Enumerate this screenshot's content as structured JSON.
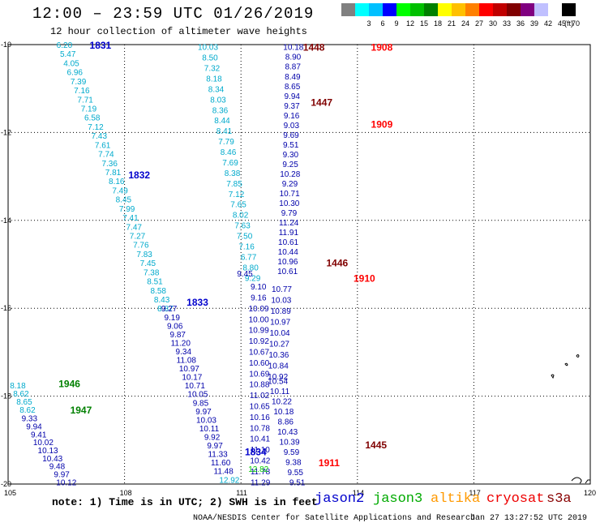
{
  "header": {
    "title": "12:00 – 23:59 UTC 01/26/2019",
    "subtitle": "12 hour collection of altimeter wave heights"
  },
  "color_scale": {
    "unit": "(ft)",
    "colors": [
      "#808080",
      "#00ffff",
      "#00c0ff",
      "#0000ff",
      "#00ff00",
      "#00c000",
      "#008000",
      "#ffff00",
      "#ffc000",
      "#ff8000",
      "#ff0000",
      "#c00000",
      "#800000",
      "#800080",
      "#c0c0ff",
      "#ffffff",
      "#000000"
    ],
    "labels": [
      "",
      "3",
      "6",
      "9",
      "12",
      "15",
      "18",
      "21",
      "24",
      "27",
      "30",
      "33",
      "36",
      "39",
      "42",
      "45",
      "70"
    ]
  },
  "map": {
    "lon_ticks": [
      "105",
      "108",
      "111",
      "114",
      "117",
      "120"
    ],
    "lat_ticks": [
      "-10",
      "-12",
      "-14",
      "-16",
      "-18",
      "-20"
    ]
  },
  "passes": [
    {
      "label": "1831",
      "color": "#0000cc",
      "lon": 107.1,
      "lat": -10.0
    },
    {
      "label": "1832",
      "color": "#0000cc",
      "lon": 108.1,
      "lat": -12.95
    },
    {
      "label": "1833",
      "color": "#0000cc",
      "lon": 109.6,
      "lat": -15.85
    },
    {
      "label": "1834",
      "color": "#0000cc",
      "lon": 111.1,
      "lat": -19.25
    },
    {
      "label": "1946",
      "color": "#008000",
      "lon": 106.3,
      "lat": -17.7
    },
    {
      "label": "1947",
      "color": "#008000",
      "lon": 106.6,
      "lat": -18.3
    },
    {
      "label": "1448",
      "color": "#800000",
      "lon": 112.6,
      "lat": -10.05
    },
    {
      "label": "1447",
      "color": "#800000",
      "lon": 112.8,
      "lat": -11.3
    },
    {
      "label": "1446",
      "color": "#800000",
      "lon": 113.2,
      "lat": -14.95
    },
    {
      "label": "1445",
      "color": "#800000",
      "lon": 114.2,
      "lat": -19.1
    },
    {
      "label": "1908",
      "color": "#ff0000",
      "lon": 114.35,
      "lat": -10.05
    },
    {
      "label": "1909",
      "color": "#ff0000",
      "lon": 114.35,
      "lat": -11.8
    },
    {
      "label": "1910",
      "color": "#ff0000",
      "lon": 113.9,
      "lat": -15.3
    },
    {
      "label": "1911",
      "color": "#ff0000",
      "lon": 113.0,
      "lat": -19.5
    }
  ],
  "tracks": [
    {
      "id": "t1",
      "color": "#00aacc",
      "lon_start": 106.45,
      "lat_start": -10.0,
      "lon_end": 109.05,
      "lat_end": -16.0,
      "values": [
        "6.20",
        "5.47",
        "4.05",
        "6.96",
        "7.39",
        "7.16",
        "7.71",
        "7.19",
        "6.58",
        "7.12",
        "7.43",
        "7.61",
        "7.74",
        "7.36",
        "7.81",
        "8.16",
        "7.49",
        "8.45",
        "7.99",
        "7.41",
        "7.47",
        "7.27",
        "7.76",
        "7.83",
        "7.45",
        "7.38",
        "8.51",
        "8.58",
        "8.43",
        "8.87"
      ]
    },
    {
      "id": "t2",
      "color": "#0000aa",
      "lon_start": 109.15,
      "lat_start": -16.0,
      "lon_end": 110.55,
      "lat_end": -19.7,
      "values": [
        "9.27",
        "9.19",
        "9.06",
        "9.87",
        "11.20",
        "9.34",
        "11.08",
        "10.97",
        "10.17",
        "10.71",
        "10.05",
        "9.85",
        "9.97",
        "10.03",
        "10.11",
        "9.92",
        "9.97",
        "11.33",
        "11.60",
        "11.48"
      ]
    },
    {
      "id": "t3",
      "color": "#00aacc",
      "lon_start": 110.7,
      "lat_start": -19.9,
      "lon_end": 110.7,
      "lat_end": -19.9,
      "values": [
        "12.92"
      ]
    },
    {
      "id": "t4",
      "color": "#00aacc",
      "lon_start": 105.25,
      "lat_start": -17.75,
      "lon_end": 105.5,
      "lat_end": -18.3,
      "values": [
        "8.18",
        "8.62",
        "8.65",
        "8.62"
      ]
    },
    {
      "id": "t5",
      "color": "#0000aa",
      "lon_start": 105.55,
      "lat_start": -18.5,
      "lon_end": 106.5,
      "lat_end": -19.95,
      "values": [
        "9.33",
        "9.94",
        "9.41",
        "10.02",
        "10.13",
        "10.43",
        "9.48",
        "9.97",
        "10.12"
      ]
    },
    {
      "id": "t6",
      "color": "#00aacc",
      "lon_start": 110.15,
      "lat_start": -10.05,
      "lon_end": 111.3,
      "lat_end": -15.3,
      "values": [
        "10.03",
        "8.50",
        "7.32",
        "8.18",
        "8.34",
        "8.03",
        "8.36",
        "8.44",
        "8.41",
        "7.79",
        "8.46",
        "7.69",
        "8.38",
        "7.85",
        "7.12",
        "7.65",
        "8.02",
        "7.63",
        "7.50",
        "7.16",
        "6.77",
        "8.80",
        "9.29"
      ]
    },
    {
      "id": "t7",
      "color": "#0000aa",
      "lon_start": 111.45,
      "lat_start": -15.5,
      "lon_end": 111.5,
      "lat_end": -19.95,
      "values": [
        "9.10",
        "9.16",
        "10.09",
        "10.00",
        "10.99",
        "10.92",
        "10.67",
        "10.60",
        "10.69",
        "10.88",
        "11.02",
        "10.65",
        "10.16",
        "10.78",
        "10.41",
        "11.10",
        "10.42",
        "11.78",
        "11.29"
      ]
    },
    {
      "id": "t8",
      "color": "#0000aa",
      "lon_start": 112.35,
      "lat_start": -10.05,
      "lon_end": 112.2,
      "lat_end": -15.15,
      "values": [
        "10.18",
        "8.90",
        "8.87",
        "8.49",
        "8.65",
        "9.94",
        "9.37",
        "9.16",
        "9.03",
        "9.69",
        "9.51",
        "9.30",
        "9.25",
        "10.28",
        "9.29",
        "10.71",
        "10.30",
        "9.79",
        "11.24",
        "11.91",
        "10.61",
        "10.44",
        "10.96",
        "10.61"
      ]
    },
    {
      "id": "t9",
      "color": "#0000aa",
      "lon_start": 112.05,
      "lat_start": -15.55,
      "lon_end": 111.95,
      "lat_end": -17.55,
      "values": [
        "10.77",
        "10.03",
        "10.89",
        "10.97",
        "10.04",
        "10.27",
        "10.36",
        "10.84",
        "10.92"
      ]
    },
    {
      "id": "t10",
      "color": "#0000aa",
      "lon_start": 111.95,
      "lat_start": -17.65,
      "lon_end": 112.45,
      "lat_end": -19.95,
      "values": [
        "10.54",
        "10.11",
        "10.22",
        "10.18",
        "8.86",
        "10.43",
        "10.39",
        "9.59",
        "9.38",
        "9.55",
        "9.51"
      ]
    },
    {
      "id": "t11",
      "color": "#0000aa",
      "lon_start": 111.1,
      "lat_start": -15.2,
      "lon_end": 111.1,
      "lat_end": -15.2,
      "values": [
        "9.45"
      ]
    },
    {
      "id": "t12",
      "color": "#00cc00",
      "lon_start": 111.45,
      "lat_start": -19.65,
      "lon_end": 111.45,
      "lat_end": -19.65,
      "values": [
        "12.82"
      ]
    }
  ],
  "note": "note: 1) Time is in UTC; 2) SWH is in feet",
  "legend": [
    {
      "label": "jason2",
      "color": "#0000cc"
    },
    {
      "label": "jason3",
      "color": "#00aa00"
    },
    {
      "label": "altika",
      "color": "#ff9900"
    },
    {
      "label": "cryosat",
      "color": "#ee0000"
    },
    {
      "label": "s3a",
      "color": "#880000"
    }
  ],
  "footer": "NOAA/NESDIS Center for Satellite Applications and Research",
  "footer_time": "Jan 27 13:27:52 UTC 2019"
}
